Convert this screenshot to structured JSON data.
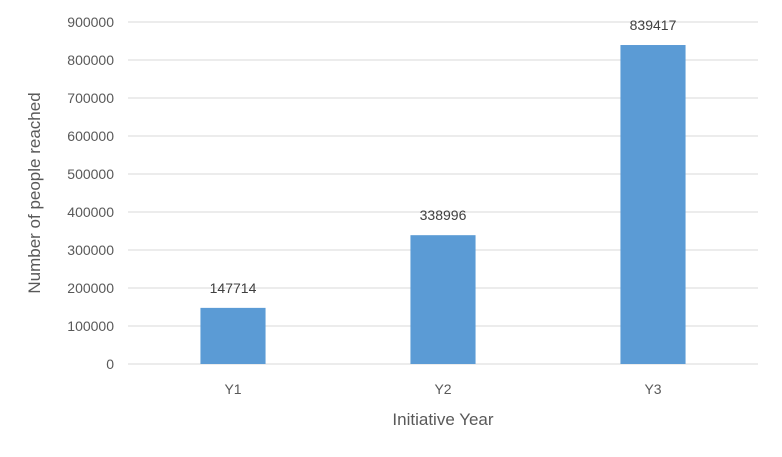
{
  "chart_data": {
    "type": "bar",
    "title": "",
    "xlabel": "Initiative Year",
    "ylabel": "Number of people reached",
    "categories": [
      "Y1",
      "Y2",
      "Y3"
    ],
    "values": [
      147714,
      338996,
      839417
    ],
    "data_labels": [
      "147714",
      "338996",
      "839417"
    ],
    "ylim": [
      0,
      900000
    ],
    "yticks": [
      0,
      100000,
      200000,
      300000,
      400000,
      500000,
      600000,
      700000,
      800000,
      900000
    ],
    "ytick_labels": [
      "0",
      "100000",
      "200000",
      "300000",
      "400000",
      "500000",
      "600000",
      "700000",
      "800000",
      "900000"
    ],
    "grid": true,
    "legend": "none",
    "colors": {
      "bar": "#5b9bd5",
      "grid": "#d9d9d9",
      "text": "#595959"
    }
  }
}
